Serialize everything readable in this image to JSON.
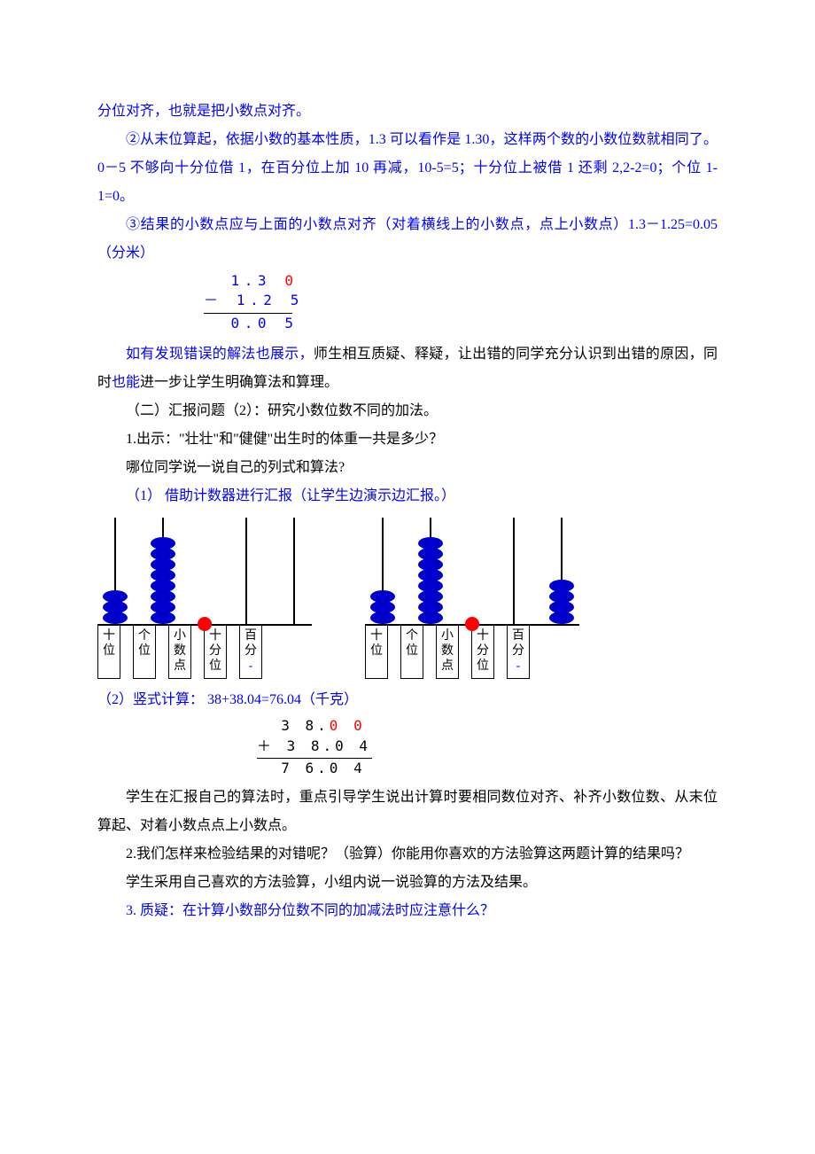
{
  "para1": "分位对齐，也就是把小数点对齐。",
  "para2": "②从末位算起，依据小数的基本性质，1.3 可以看作是 1.30，这样两个数的小数位数就相同了。0－5 不够向十分位借 1，在百分位上加 10 再减，10-5=5；十分位上被借 1 还剩 2,2-2=0；个位 1-1=0。",
  "para3": "③结果的小数点应与上面的小数点对齐（对着横线上的小数点，点上小数点）1.3－1.25=0.05（分米）",
  "calc1": {
    "l1_a": "  1.3 ",
    "l1_b": "0",
    "l2": "－ 1.2 5",
    "l3": "  0.0 5"
  },
  "para4_a": "如有发现错误的解法也展示，",
  "para4_b": "师生相互质疑、释疑，让出错的同学充分认识到出错的原因，同时",
  "para4_c": "也能",
  "para4_d": "进一步让学生明确算法和算理。",
  "heading2": "（二）汇报问题（2）：研究小数位数不同的加法。",
  "q1": "1.出示：\"壮壮\"和\"健健\"出生时的体重一共是多少？",
  "q1b": "哪位同学说一说自己的列式和算法?",
  "step1": "（1） 借助计数器进行汇报（让学生边演示边汇报。）",
  "labels": {
    "shi": "十位",
    "ge": "个位",
    "dian": "小数点",
    "shifen": "十分位",
    "baifen": "百分",
    "dash": "-"
  },
  "abacus_left": {
    "beads": [
      3,
      8,
      0,
      0,
      0
    ]
  },
  "abacus_right": {
    "beads": [
      3,
      8,
      0,
      0,
      4
    ]
  },
  "step2": "（2）竖式计算：  38+38.04=76.04（千克）",
  "calc2": {
    "l1_a": "  3 8.",
    "l1_b": "0 0",
    "l2": "＋ 3 8.0 4",
    "l3": "  7 6.0 4"
  },
  "para5": "学生在汇报自己的算法时，重点引导学生说出计算时要相同数位对齐、补齐小数位数、从末位算起、对着小数点点上小数点。",
  "q2": "2.我们怎样来检验结果的对错呢？（验算）你能用你喜欢的方法验算这两题计算的结果吗？",
  "para6": "学生采用自己喜欢的方法验算，小组内说一说验算的方法及结果。",
  "q3": "3. 质疑：在计算小数部分位数不同的加减法时应注意什么？",
  "colors": {
    "blue": "#0000ff",
    "red": "#ff0000",
    "bead": "#0000cc"
  }
}
